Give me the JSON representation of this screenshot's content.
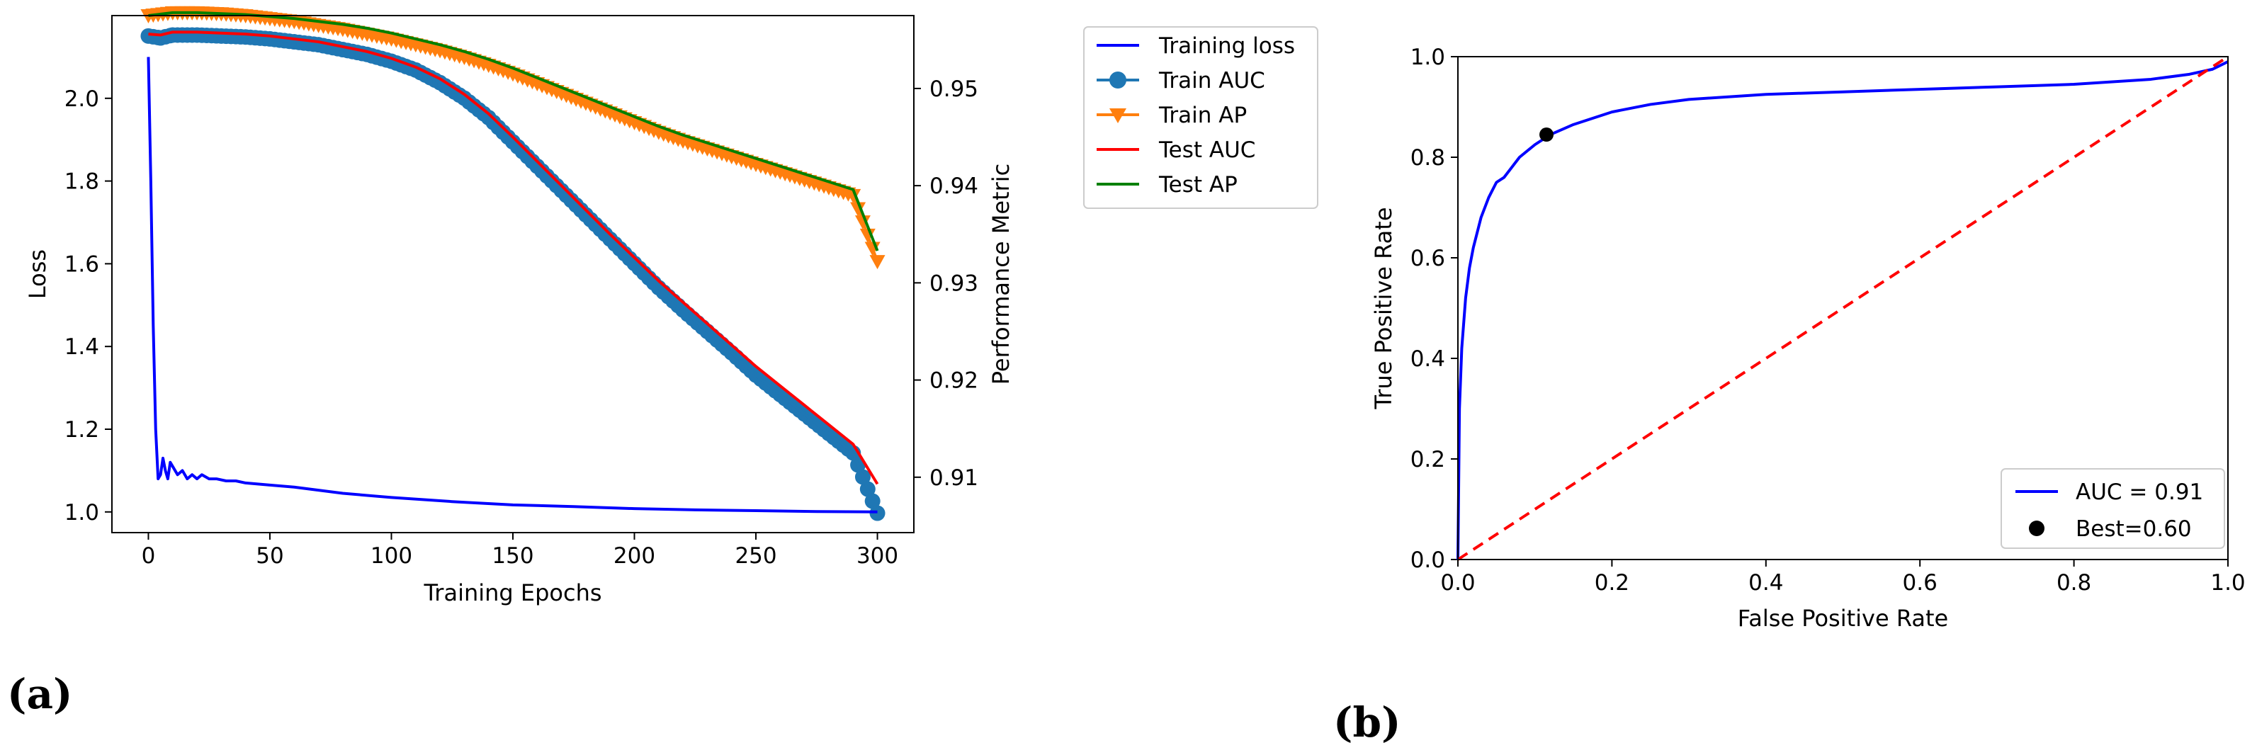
{
  "panel_labels": {
    "a": "(a)",
    "b": "(b)"
  },
  "colors": {
    "training_loss": "#0000ff",
    "train_auc": "#1f77b4",
    "train_ap": "#ff7f0e",
    "test_auc": "#ff0000",
    "test_ap": "#008000",
    "roc": "#0000ff",
    "diagonal": "#ff0000",
    "best_point": "#000000"
  },
  "chart_data": [
    {
      "type": "line",
      "panel": "(a)",
      "title": "",
      "xlabel": "Training Epochs",
      "ylabel_left": "Loss",
      "ylabel_right": "Performance Metric",
      "xlim": [
        -15,
        315
      ],
      "ylim_left": [
        0.95,
        2.2
      ],
      "ylim_right": [
        0.9043,
        0.9575
      ],
      "x_ticks": [
        "0",
        "50",
        "100",
        "150",
        "200",
        "250",
        "300"
      ],
      "y_left_ticks": [
        "1.0",
        "1.2",
        "1.4",
        "1.6",
        "1.8",
        "2.0"
      ],
      "y_right_ticks": [
        "0.91",
        "0.92",
        "0.93",
        "0.94",
        "0.95"
      ],
      "legend_position": "outside-right",
      "series": [
        {
          "name": "Training loss",
          "axis": "left",
          "marker": "none",
          "x": [
            0,
            1,
            2,
            3,
            4,
            5,
            6,
            7,
            8,
            9,
            10,
            12,
            14,
            16,
            18,
            20,
            22,
            25,
            28,
            32,
            36,
            40,
            50,
            60,
            80,
            100,
            125,
            150,
            175,
            200,
            225,
            250,
            275,
            300
          ],
          "y": [
            2.1,
            1.8,
            1.45,
            1.2,
            1.08,
            1.09,
            1.13,
            1.1,
            1.08,
            1.12,
            1.11,
            1.09,
            1.1,
            1.08,
            1.09,
            1.08,
            1.09,
            1.08,
            1.08,
            1.075,
            1.075,
            1.07,
            1.065,
            1.06,
            1.045,
            1.035,
            1.025,
            1.017,
            1.013,
            1.008,
            1.005,
            1.003,
            1.001,
            1.0
          ]
        },
        {
          "name": "Train AUC",
          "axis": "right",
          "marker": "circle",
          "x": [
            0,
            5,
            10,
            20,
            30,
            40,
            50,
            60,
            70,
            80,
            90,
            100,
            110,
            120,
            130,
            140,
            150,
            160,
            170,
            180,
            190,
            200,
            210,
            220,
            230,
            240,
            250,
            260,
            270,
            280,
            290,
            300
          ],
          "y": [
            0.9554,
            0.9552,
            0.9555,
            0.9555,
            0.9554,
            0.9553,
            0.9551,
            0.9548,
            0.9545,
            0.954,
            0.9535,
            0.9528,
            0.9519,
            0.9506,
            0.949,
            0.947,
            0.9445,
            0.942,
            0.9395,
            0.937,
            0.9345,
            0.932,
            0.9295,
            0.9272,
            0.925,
            0.9228,
            0.9205,
            0.9185,
            0.9165,
            0.9145,
            0.9125,
            0.9063
          ]
        },
        {
          "name": "Train AP",
          "axis": "right",
          "marker": "triangle_down",
          "x": [
            0,
            10,
            20,
            30,
            40,
            50,
            60,
            70,
            80,
            90,
            100,
            110,
            120,
            130,
            140,
            150,
            160,
            170,
            180,
            190,
            200,
            210,
            220,
            230,
            240,
            250,
            260,
            270,
            280,
            290,
            300
          ],
          "y": [
            0.9575,
            0.9578,
            0.9578,
            0.9577,
            0.9575,
            0.9572,
            0.9569,
            0.9565,
            0.9561,
            0.9556,
            0.9551,
            0.9545,
            0.9539,
            0.9532,
            0.9524,
            0.9515,
            0.9505,
            0.9495,
            0.9485,
            0.9475,
            0.9465,
            0.9455,
            0.9446,
            0.9438,
            0.943,
            0.9422,
            0.9414,
            0.9406,
            0.9398,
            0.939,
            0.9322
          ]
        },
        {
          "name": "Test AUC",
          "axis": "right",
          "marker": "none",
          "x": [
            0,
            5,
            10,
            20,
            30,
            40,
            50,
            60,
            70,
            80,
            90,
            100,
            110,
            120,
            130,
            140,
            150,
            160,
            170,
            180,
            190,
            200,
            210,
            220,
            230,
            240,
            250,
            260,
            270,
            280,
            290,
            300
          ],
          "y": [
            0.9556,
            0.9555,
            0.9558,
            0.9558,
            0.9557,
            0.9556,
            0.9554,
            0.9551,
            0.9548,
            0.9543,
            0.9538,
            0.9531,
            0.9522,
            0.951,
            0.9494,
            0.9474,
            0.945,
            0.9425,
            0.94,
            0.9375,
            0.935,
            0.9326,
            0.9302,
            0.928,
            0.9258,
            0.9236,
            0.9214,
            0.9194,
            0.9174,
            0.9154,
            0.9134,
            0.9093
          ]
        },
        {
          "name": "Test AP",
          "axis": "right",
          "marker": "none",
          "x": [
            0,
            10,
            20,
            30,
            40,
            50,
            60,
            70,
            80,
            90,
            100,
            110,
            120,
            130,
            140,
            150,
            160,
            170,
            180,
            190,
            200,
            210,
            220,
            230,
            240,
            250,
            260,
            270,
            280,
            290,
            300
          ],
          "y": [
            0.9575,
            0.9578,
            0.9578,
            0.9577,
            0.9576,
            0.9574,
            0.9572,
            0.9569,
            0.9566,
            0.9562,
            0.9557,
            0.9551,
            0.9545,
            0.9538,
            0.953,
            0.9521,
            0.9511,
            0.9501,
            0.9491,
            0.9481,
            0.9471,
            0.9461,
            0.9452,
            0.9444,
            0.9436,
            0.9428,
            0.942,
            0.9412,
            0.9404,
            0.9396,
            0.9333
          ]
        }
      ]
    },
    {
      "type": "line",
      "panel": "(b)",
      "title": "",
      "xlabel": "False Positive Rate",
      "ylabel": "True Positive Rate",
      "xlim": [
        0,
        1
      ],
      "ylim": [
        0,
        1
      ],
      "x_ticks": [
        "0.0",
        "0.2",
        "0.4",
        "0.6",
        "0.8",
        "1.0"
      ],
      "y_ticks": [
        "0.0",
        "0.2",
        "0.4",
        "0.6",
        "0.8",
        "1.0"
      ],
      "legend_position": "lower-right",
      "legend": [
        "AUC = 0.91",
        "Best=0.60"
      ],
      "series": [
        {
          "name": "AUC = 0.91",
          "style": "solid",
          "x": [
            0,
            0.001,
            0.002,
            0.005,
            0.01,
            0.015,
            0.02,
            0.03,
            0.04,
            0.05,
            0.06,
            0.07,
            0.08,
            0.1,
            0.12,
            0.15,
            0.2,
            0.25,
            0.3,
            0.4,
            0.5,
            0.6,
            0.7,
            0.8,
            0.9,
            0.95,
            0.98,
            1.0
          ],
          "y": [
            0,
            0.15,
            0.3,
            0.42,
            0.52,
            0.58,
            0.62,
            0.68,
            0.72,
            0.75,
            0.76,
            0.78,
            0.8,
            0.825,
            0.845,
            0.865,
            0.89,
            0.905,
            0.915,
            0.925,
            0.93,
            0.935,
            0.94,
            0.945,
            0.955,
            0.965,
            0.975,
            0.99
          ]
        },
        {
          "name": "chance",
          "style": "dashed",
          "x": [
            0,
            1
          ],
          "y": [
            0,
            1
          ]
        }
      ],
      "points": [
        {
          "name": "Best=0.60",
          "x": 0.115,
          "y": 0.845
        }
      ]
    }
  ]
}
